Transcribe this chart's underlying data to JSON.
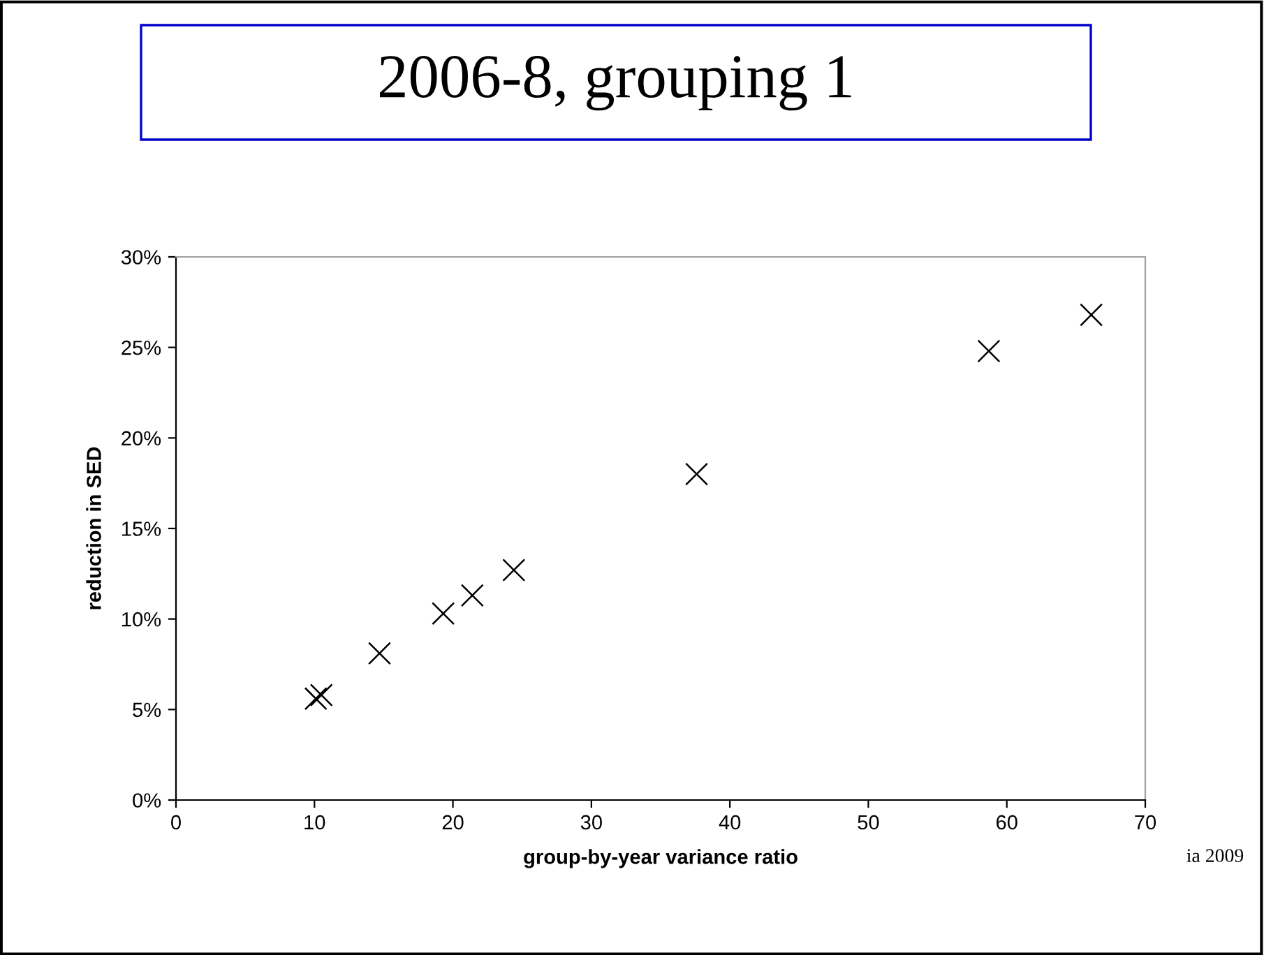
{
  "chart_data": {
    "type": "scatter",
    "title": "2006-8, grouping 1",
    "xlabel": "group-by-year variance ratio",
    "ylabel": "reduction in SED",
    "annotations": [
      "ia 2009"
    ],
    "x": [
      10.1,
      10.5,
      14.7,
      19.3,
      21.4,
      24.4,
      37.6,
      58.7,
      66.1
    ],
    "series": [
      {
        "color": "#000000",
        "values": [
          5.6,
          5.8,
          8.1,
          10.3,
          11.3,
          12.7,
          18.0,
          24.8,
          26.8
        ]
      }
    ],
    "marker": "cross",
    "grid": false,
    "legend": false,
    "xlim": [
      0,
      70
    ],
    "xticks": [
      0,
      10,
      20,
      30,
      40,
      50,
      60,
      70
    ],
    "ylim": [
      0,
      30
    ],
    "yticks": [
      {
        "value": 0,
        "label": "0%"
      },
      {
        "value": 5,
        "label": "5%"
      },
      {
        "value": 10,
        "label": "10%"
      },
      {
        "value": 15,
        "label": "15%"
      },
      {
        "value": 20,
        "label": "20%"
      },
      {
        "value": 25,
        "label": "25%"
      },
      {
        "value": 30,
        "label": "30%"
      }
    ]
  }
}
